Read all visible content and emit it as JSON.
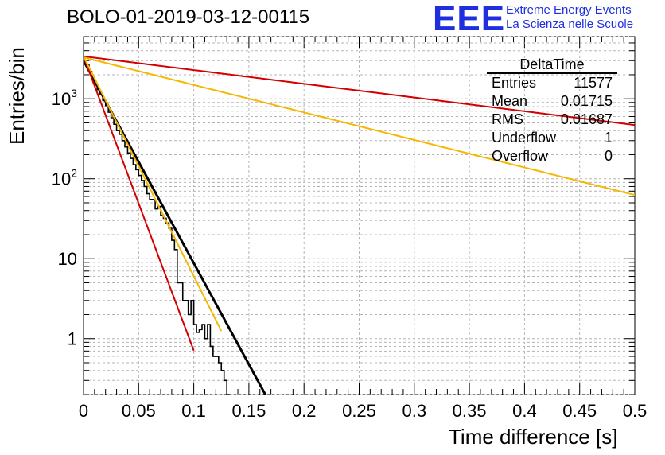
{
  "header": {
    "title": "BOLO-01-2019-03-12-00115",
    "logo": "EEE",
    "logo_line1": "Extreme Energy Events",
    "logo_line2": "La Scienza nelle Scuole"
  },
  "colors": {
    "logo": "#1f2fe0",
    "histogram": "#000000",
    "fit": "#000000",
    "red_curve": "#d40000",
    "yellow_curve": "#f5b800"
  },
  "chart_data": {
    "type": "line",
    "xlabel": "Time difference [s]",
    "ylabel": "Entries/bin",
    "xlim": [
      0,
      0.5
    ],
    "ylim": [
      0.2,
      6000
    ],
    "yscale": "log",
    "grid": true,
    "x_ticks": [
      "0",
      "0.05",
      "0.1",
      "0.15",
      "0.2",
      "0.25",
      "0.3",
      "0.35",
      "0.4",
      "0.45",
      "0.5"
    ],
    "y_ticks": [
      {
        "value": 1,
        "base": "1",
        "exp": ""
      },
      {
        "value": 10,
        "base": "10",
        "exp": ""
      },
      {
        "value": 100,
        "base": "10",
        "exp": "2"
      },
      {
        "value": 1000,
        "base": "10",
        "exp": "3"
      }
    ],
    "histogram": {
      "name": "DeltaTime",
      "bin_width": 0.0025,
      "counts": [
        3000,
        2650,
        2200,
        1850,
        1500,
        1300,
        1150,
        950,
        820,
        680,
        580,
        480,
        400,
        360,
        300,
        250,
        210,
        180,
        150,
        130,
        110,
        95,
        80,
        65,
        55,
        55,
        42,
        45,
        35,
        32,
        28,
        24,
        17,
        13,
        5,
        5,
        3,
        3,
        2,
        3,
        1.5,
        1.2,
        1.3,
        1.5,
        1,
        1.5,
        0.8,
        0.6,
        0.6,
        0.5,
        0.4,
        0.3,
        0.2
      ]
    },
    "series": [
      {
        "color": "#000000",
        "a": 3000,
        "tau": 0.01715,
        "x_end": 0.17
      },
      {
        "color": "#d40000",
        "a": 3400,
        "tau": 0.0118,
        "x_end": 0.1
      },
      {
        "color": "#f5b800",
        "a": 3400,
        "tau": 0.0158,
        "x_end": 0.125
      },
      {
        "color": "#d40000",
        "a": 3400,
        "tau": 0.2528,
        "x_end": 0.5
      },
      {
        "color": "#f5b800",
        "a": 3300,
        "tau": 0.1261,
        "x_end": 0.5
      }
    ],
    "stats": {
      "name": "DeltaTime",
      "rows": [
        {
          "label": "Entries",
          "value": "11577"
        },
        {
          "label": "Mean",
          "value": "0.01715"
        },
        {
          "label": "RMS",
          "value": "0.01687"
        },
        {
          "label": "Underflow",
          "value": "1"
        },
        {
          "label": "Overflow",
          "value": "0"
        }
      ]
    }
  }
}
